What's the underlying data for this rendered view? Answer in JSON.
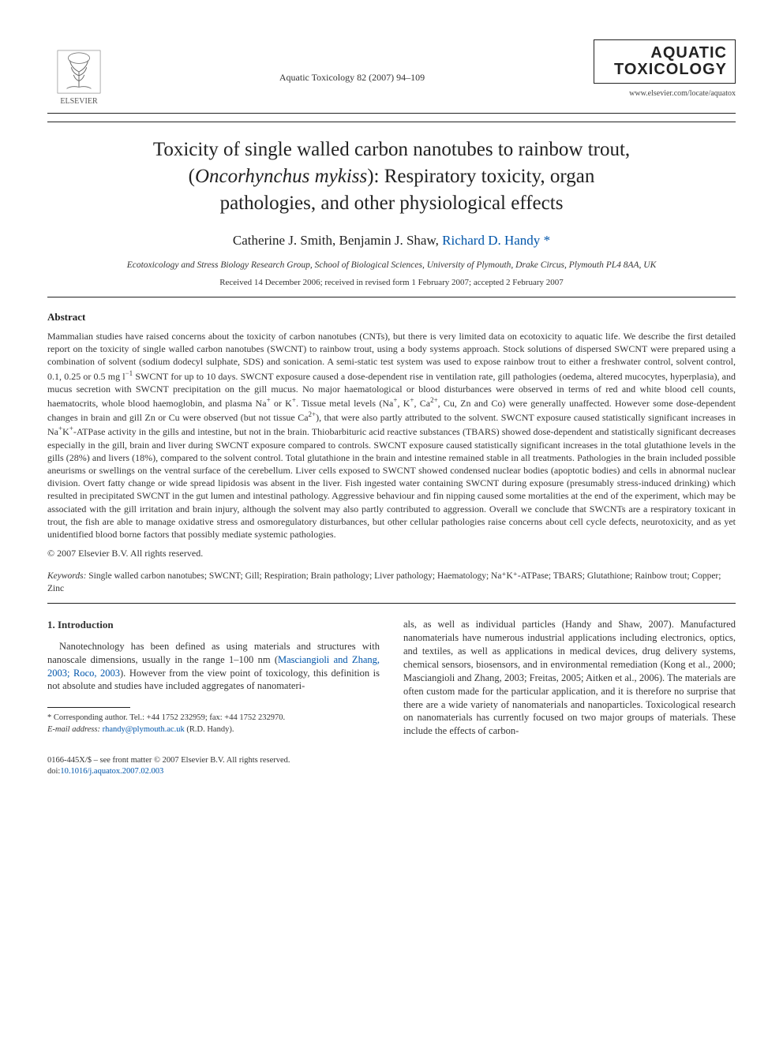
{
  "header": {
    "publisher_name": "ELSEVIER",
    "journal_ref": "Aquatic Toxicology 82 (2007) 94–109",
    "journal_brand_line1": "AQUATIC",
    "journal_brand_line2": "TOXICOLOGY",
    "journal_url": "www.elsevier.com/locate/aquatox"
  },
  "title": "Toxicity of single walled carbon nanotubes to rainbow trout, (Oncorhynchus mykiss): Respiratory toxicity, organ pathologies, and other physiological effects",
  "authors_line": "Catherine J. Smith, Benjamin J. Shaw, Richard D. Handy *",
  "affiliation": "Ecotoxicology and Stress Biology Research Group, School of Biological Sciences, University of Plymouth, Drake Circus, Plymouth PL4 8AA, UK",
  "history": "Received 14 December 2006; received in revised form 1 February 2007; accepted 2 February 2007",
  "abstract": {
    "heading": "Abstract",
    "body_html": "Mammalian studies have raised concerns about the toxicity of carbon nanotubes (CNTs), but there is very limited data on ecotoxicity to aquatic life. We describe the first detailed report on the toxicity of single walled carbon nanotubes (SWCNT) to rainbow trout, using a body systems approach. Stock solutions of dispersed SWCNT were prepared using a combination of solvent (sodium dodecyl sulphate, SDS) and sonication. A semi-static test system was used to expose rainbow trout to either a freshwater control, solvent control, 0.1, 0.25 or 0.5 mg l<sup>−1</sup> SWCNT for up to 10 days. SWCNT exposure caused a dose-dependent rise in ventilation rate, gill pathologies (oedema, altered mucocytes, hyperplasia), and mucus secretion with SWCNT precipitation on the gill mucus. No major haematological or blood disturbances were observed in terms of red and white blood cell counts, haematocrits, whole blood haemoglobin, and plasma Na<sup>+</sup> or K<sup>+</sup>. Tissue metal levels (Na<sup>+</sup>, K<sup>+</sup>, Ca<sup>2+</sup>, Cu, Zn and Co) were generally unaffected. However some dose-dependent changes in brain and gill Zn or Cu were observed (but not tissue Ca<sup>2+</sup>), that were also partly attributed to the solvent. SWCNT exposure caused statistically significant increases in Na<sup>+</sup>K<sup>+</sup>-ATPase activity in the gills and intestine, but not in the brain. Thiobarbituric acid reactive substances (TBARS) showed dose-dependent and statistically significant decreases especially in the gill, brain and liver during SWCNT exposure compared to controls. SWCNT exposure caused statistically significant increases in the total glutathione levels in the gills (28%) and livers (18%), compared to the solvent control. Total glutathione in the brain and intestine remained stable in all treatments. Pathologies in the brain included possible aneurisms or swellings on the ventral surface of the cerebellum. Liver cells exposed to SWCNT showed condensed nuclear bodies (apoptotic bodies) and cells in abnormal nuclear division. Overt fatty change or wide spread lipidosis was absent in the liver. Fish ingested water containing SWCNT during exposure (presumably stress-induced drinking) which resulted in precipitated SWCNT in the gut lumen and intestinal pathology. Aggressive behaviour and fin nipping caused some mortalities at the end of the experiment, which may be associated with the gill irritation and brain injury, although the solvent may also partly contributed to aggression. Overall we conclude that SWCNTs are a respiratory toxicant in trout, the fish are able to manage oxidative stress and osmoregulatory disturbances, but other cellular pathologies raise concerns about cell cycle defects, neurotoxicity, and as yet unidentified blood borne factors that possibly mediate systemic pathologies."
  },
  "copyright": "© 2007 Elsevier B.V. All rights reserved.",
  "keywords": {
    "label": "Keywords:",
    "text": " Single walled carbon nanotubes; SWCNT; Gill; Respiration; Brain pathology; Liver pathology; Haematology; Na⁺K⁺-ATPase; TBARS; Glutathione; Rainbow trout; Copper; Zinc"
  },
  "intro": {
    "heading": "1.  Introduction",
    "col1_html": "Nanotechnology has been defined as using materials and structures with nanoscale dimensions, usually in the range 1–100 nm (<span class=\"link\">Masciangioli and Zhang, 2003; Roco, 2003</span>). However from the view point of toxicology, this definition is not absolute and studies have included aggregates of nanomateri-",
    "col2_html": "als, as well as individual particles (<span class=\"link\">Handy and Shaw, 2007</span>). Manufactured nanomaterials have numerous industrial applications including electronics, optics, and textiles, as well as applications in medical devices, drug delivery systems, chemical sensors, biosensors, and in environmental remediation (<span class=\"link\">Kong et al., 2000; Masciangioli and Zhang, 2003; Freitas, 2005; Aitken et al., 2006</span>). The materials are often custom made for the particular application, and it is therefore no surprise that there are a wide variety of nanomaterials and nanoparticles. Toxicological research on nanomaterials has currently focused on two major groups of materials. These include the effects of carbon-"
  },
  "footnote": {
    "corresponding": "* Corresponding author. Tel.: +44 1752 232959; fax: +44 1752 232970.",
    "email_label": "E-mail address:",
    "email_value": "rhandy@plymouth.ac.uk",
    "email_name": "(R.D. Handy)."
  },
  "footer": {
    "issn_line": "0166-445X/$ – see front matter © 2007 Elsevier B.V. All rights reserved.",
    "doi_label": "doi:",
    "doi_value": "10.1016/j.aquatox.2007.02.003"
  },
  "colors": {
    "link": "#0055aa",
    "text": "#333333",
    "rule": "#222222"
  }
}
